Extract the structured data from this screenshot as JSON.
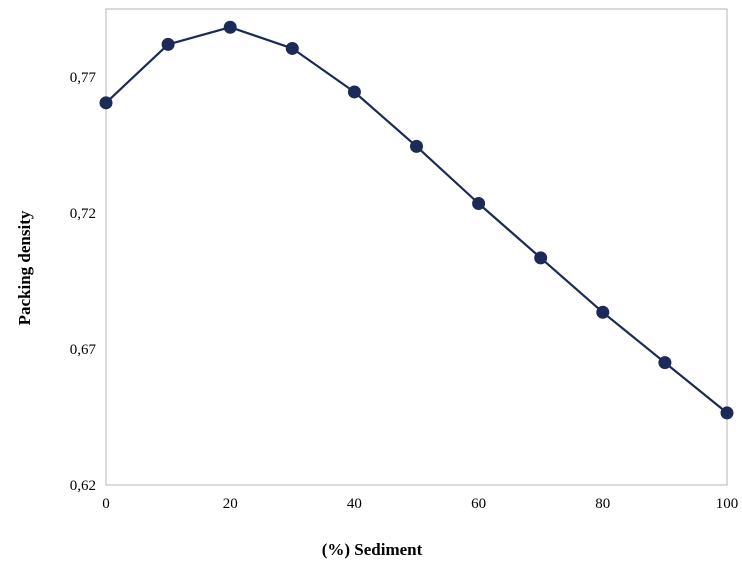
{
  "chart_data": {
    "type": "line",
    "title": "",
    "xlabel": "(%) Sediment",
    "ylabel": "Packing density",
    "xlim": [
      0,
      100
    ],
    "ylim": [
      0.62,
      0.795
    ],
    "x_ticks": [
      0,
      20,
      40,
      60,
      80,
      100
    ],
    "x_tick_labels": [
      "0",
      "20",
      "40",
      "60",
      "80",
      "100"
    ],
    "y_ticks": [
      0.62,
      0.67,
      0.72,
      0.77
    ],
    "y_tick_labels": [
      "0,62",
      "0,67",
      "0,72",
      "0,77"
    ],
    "grid": false,
    "legend": "none",
    "series": [
      {
        "color": "#1b2a56",
        "x": [
          0,
          10,
          20,
          30,
          40,
          50,
          60,
          70,
          80,
          90,
          100
        ],
        "y": [
          0.7605,
          0.782,
          0.7883,
          0.7805,
          0.7645,
          0.7445,
          0.7235,
          0.7035,
          0.6835,
          0.665,
          0.6465
        ]
      }
    ]
  }
}
